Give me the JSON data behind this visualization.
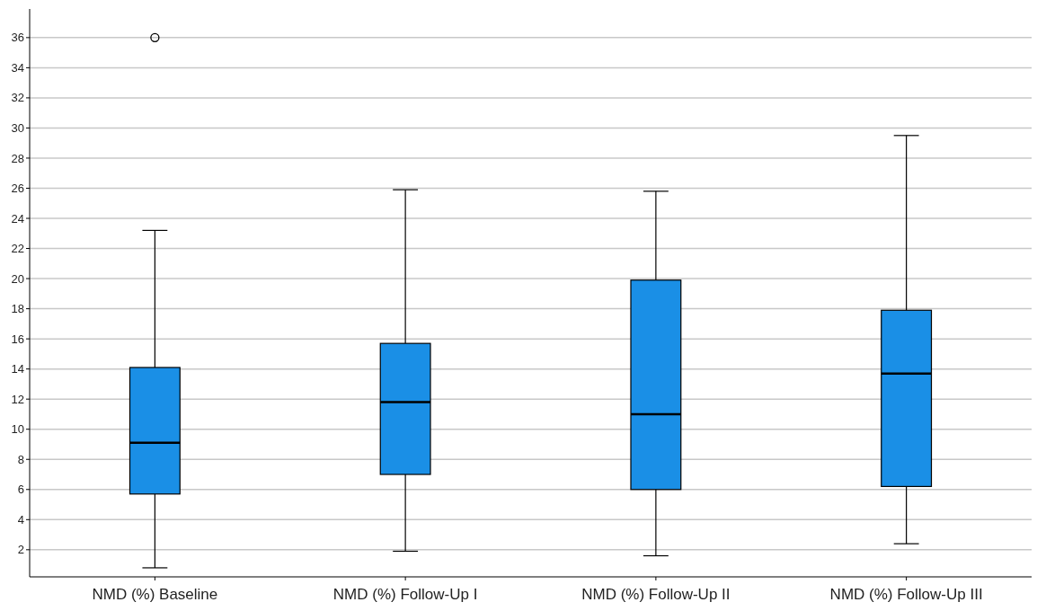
{
  "chart_data": {
    "type": "box",
    "categories": [
      "NMD (%) Baseline",
      "NMD (%) Follow-Up I",
      "NMD (%) Follow-Up II",
      "NMD (%) Follow-Up III"
    ],
    "color": "#1a8fe6",
    "boxes": [
      {
        "low": 0.8,
        "q1": 5.7,
        "median": 9.1,
        "q3": 14.1,
        "high": 23.2,
        "outliers": [
          36
        ]
      },
      {
        "low": 1.9,
        "q1": 7.0,
        "median": 11.8,
        "q3": 15.7,
        "high": 25.9
      },
      {
        "low": 1.6,
        "q1": 6.0,
        "median": 11.0,
        "q3": 19.9,
        "high": 25.8
      },
      {
        "low": 2.4,
        "q1": 6.2,
        "median": 13.7,
        "q3": 17.9,
        "high": 29.5
      }
    ],
    "ylim": [
      0.2,
      37.9
    ],
    "yticks": [
      2,
      4,
      6,
      8,
      10,
      12,
      14,
      16,
      18,
      20,
      22,
      24,
      26,
      28,
      30,
      32,
      34,
      36
    ],
    "grid": "y"
  }
}
